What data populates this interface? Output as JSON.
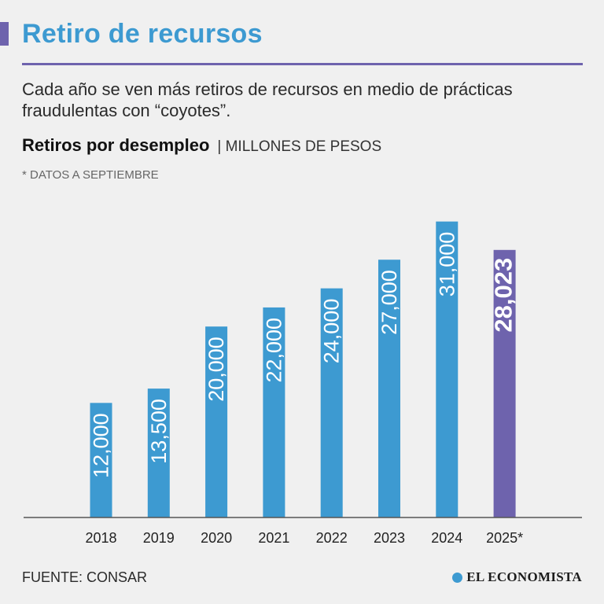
{
  "header": {
    "title": "Retiro de recursos",
    "subtitle": "Cada año se ven más retiros de recursos en medio de prácticas fraudulentas con “coyotes”.",
    "chart_title": "Retiros por desempleo",
    "chart_unit": "| MILLONES DE PESOS",
    "note": "* DATOS A SEPTIEMBRE"
  },
  "chart_data": {
    "type": "bar",
    "title": "Retiros por desempleo",
    "ylabel": "MILLONES DE PESOS",
    "xlabel": "",
    "categories": [
      "2018",
      "2019",
      "2020",
      "2021",
      "2022",
      "2023",
      "2024",
      "2025*"
    ],
    "values": [
      12000,
      13500,
      20000,
      22000,
      24000,
      27000,
      31000,
      28023
    ],
    "value_labels": [
      "12,000",
      "13,500",
      "20,000",
      "22,000",
      "24,000",
      "27,000",
      "31,000",
      "28,023"
    ],
    "highlight_index": 7,
    "colors": {
      "bar": "#3d9ad1",
      "highlight": "#6e63ad",
      "axis": "#555555",
      "label": "#ffffff",
      "tick": "#222222"
    }
  },
  "footer": {
    "source": "FUENTE: CONSAR",
    "brand": "EL ECONOMISTA"
  }
}
